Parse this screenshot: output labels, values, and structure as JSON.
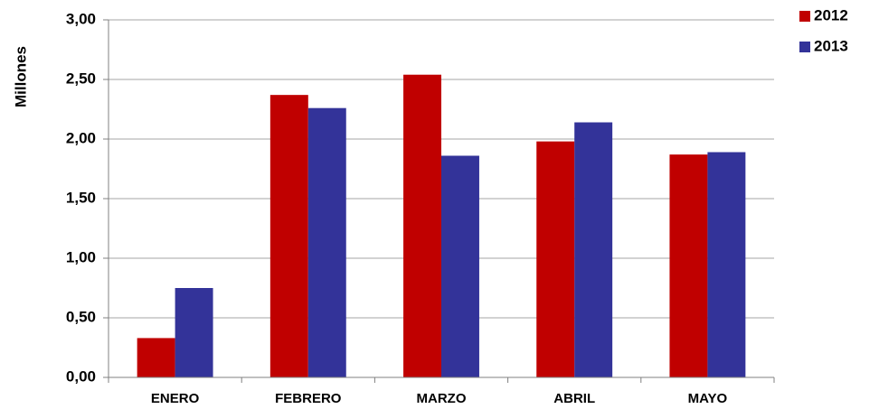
{
  "chart_data": {
    "type": "bar",
    "y_label": "Millones",
    "categories": [
      "ENERO",
      "FEBRERO",
      "MARZO",
      "ABRIL",
      "MAYO"
    ],
    "series": [
      {
        "name": "2012",
        "color": "#c00000",
        "values": [
          0.33,
          2.37,
          2.54,
          1.98,
          1.87
        ]
      },
      {
        "name": "2013",
        "color": "#333399",
        "values": [
          0.75,
          2.26,
          1.86,
          2.14,
          1.89
        ]
      }
    ],
    "ylim": [
      0,
      3
    ],
    "yticks": [
      {
        "value": 0,
        "label": "0,00"
      },
      {
        "value": 0.5,
        "label": "0,50"
      },
      {
        "value": 1,
        "label": "1,00"
      },
      {
        "value": 1.5,
        "label": "1,50"
      },
      {
        "value": 2,
        "label": "2,00"
      },
      {
        "value": 2.5,
        "label": "2,50"
      },
      {
        "value": 3,
        "label": "3,00"
      }
    ],
    "grid": true,
    "legend": "top-right"
  }
}
